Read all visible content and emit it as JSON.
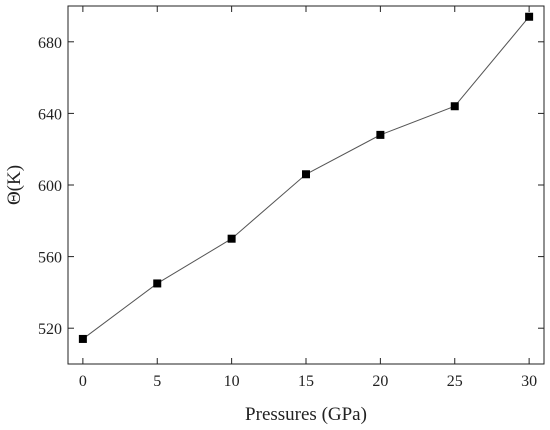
{
  "chart_data": {
    "type": "line",
    "title": "",
    "xlabel": "Pressures (GPa)",
    "ylabel": "Θ(K)",
    "x": [
      0,
      5,
      10,
      15,
      20,
      25,
      30
    ],
    "series": [
      {
        "values": [
          514,
          545,
          570,
          606,
          628,
          644,
          694
        ]
      }
    ],
    "xlim": [
      -1,
      31
    ],
    "ylim": [
      500,
      700
    ],
    "xticks": [
      0,
      5,
      10,
      15,
      20,
      25,
      30
    ],
    "yticks": [
      520,
      560,
      600,
      640,
      680
    ],
    "grid": false,
    "legend": "none",
    "marker": "square",
    "colors": {
      "line": "#555555",
      "marker": "#000000",
      "axis": "#222222"
    }
  }
}
